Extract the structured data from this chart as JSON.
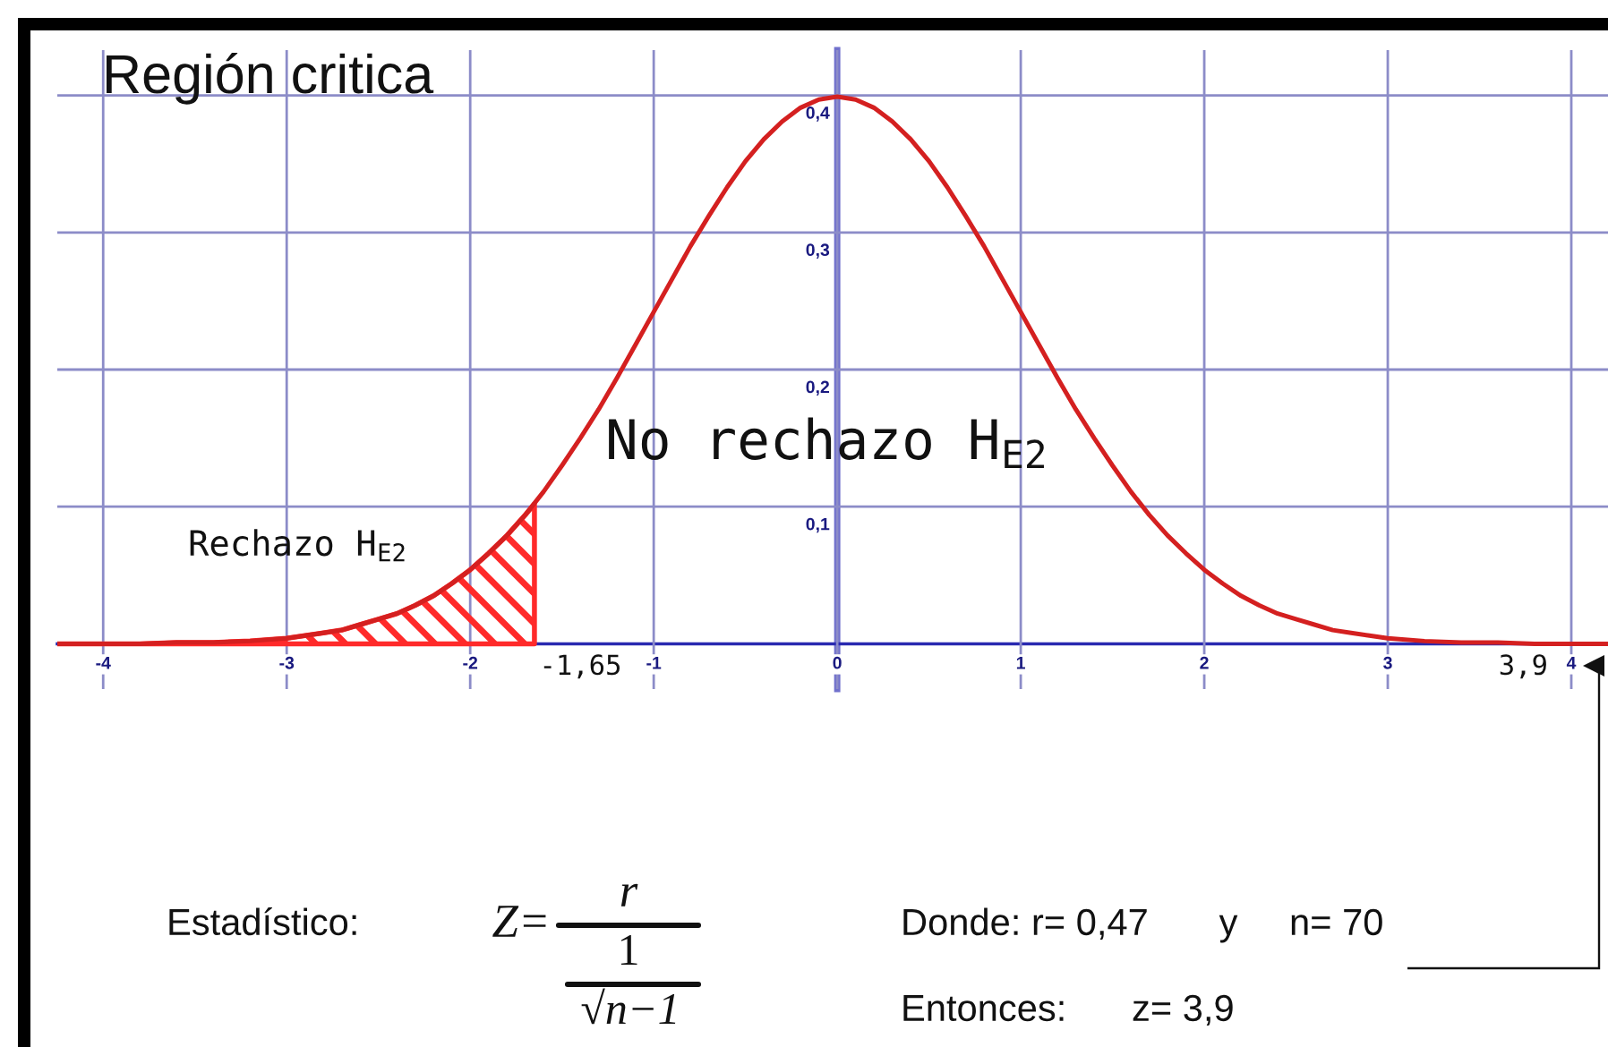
{
  "chart_data": {
    "type": "line",
    "title": "Región critica",
    "series": [
      {
        "color": "#d42020",
        "x": [
          -4.25,
          -4.0,
          -3.8,
          -3.6,
          -3.4,
          -3.2,
          -3.0,
          -2.9,
          -2.8,
          -2.7,
          -2.6,
          -2.5,
          -2.4,
          -2.3,
          -2.2,
          -2.1,
          -2.0,
          -1.9,
          -1.8,
          -1.7,
          -1.6,
          -1.5,
          -1.4,
          -1.3,
          -1.2,
          -1.1,
          -1.0,
          -0.9,
          -0.8,
          -0.7,
          -0.6,
          -0.5,
          -0.4,
          -0.3,
          -0.2,
          -0.1,
          0,
          0.1,
          0.2,
          0.3,
          0.4,
          0.5,
          0.6,
          0.7,
          0.8,
          0.9,
          1.0,
          1.1,
          1.2,
          1.3,
          1.4,
          1.5,
          1.6,
          1.7,
          1.8,
          1.9,
          2.0,
          2.1,
          2.2,
          2.3,
          2.4,
          2.5,
          2.6,
          2.7,
          2.8,
          2.9,
          3.0,
          3.2,
          3.4,
          3.6,
          3.8,
          4.0,
          4.2
        ],
        "values": [
          0,
          0,
          0,
          0.001,
          0.001,
          0.002,
          0.004,
          0.006,
          0.008,
          0.01,
          0.014,
          0.018,
          0.022,
          0.028,
          0.035,
          0.044,
          0.054,
          0.066,
          0.079,
          0.094,
          0.111,
          0.13,
          0.15,
          0.171,
          0.194,
          0.218,
          0.242,
          0.266,
          0.29,
          0.312,
          0.333,
          0.352,
          0.368,
          0.381,
          0.391,
          0.397,
          0.399,
          0.397,
          0.391,
          0.381,
          0.368,
          0.352,
          0.333,
          0.312,
          0.29,
          0.266,
          0.242,
          0.218,
          0.194,
          0.171,
          0.15,
          0.13,
          0.111,
          0.094,
          0.079,
          0.066,
          0.054,
          0.044,
          0.035,
          0.028,
          0.022,
          0.018,
          0.014,
          0.01,
          0.008,
          0.006,
          0.004,
          0.002,
          0.001,
          0.001,
          0,
          0,
          0
        ]
      },
      {
        "type": "area",
        "color": "#ff2a2a",
        "x": [
          -4.25,
          -4.0,
          -3.8,
          -3.6,
          -3.4,
          -3.2,
          -3.0,
          -2.9,
          -2.8,
          -2.7,
          -2.6,
          -2.5,
          -2.4,
          -2.3,
          -2.2,
          -2.1,
          -2.0,
          -1.9,
          -1.8,
          -1.7,
          -1.65
        ],
        "values": [
          0,
          0,
          0,
          0.001,
          0.001,
          0.002,
          0.004,
          0.006,
          0.008,
          0.01,
          0.014,
          0.018,
          0.022,
          0.028,
          0.035,
          0.044,
          0.054,
          0.066,
          0.079,
          0.094,
          0.102
        ]
      }
    ],
    "xlim": [
      -4.25,
      4.2
    ],
    "ylim": [
      -0.033,
      0.433
    ],
    "xticks": [
      -4,
      -3,
      -2,
      -1,
      0,
      1,
      2,
      3,
      4
    ],
    "yticks": [
      {
        "value": 0.1,
        "label": "0,1"
      },
      {
        "value": 0.2,
        "label": "0,2"
      },
      {
        "value": 0.3,
        "label": "0,3"
      },
      {
        "value": 0.4,
        "label": "0,4"
      }
    ],
    "grid": true,
    "annotations": [
      "No rechazo H$_{E2}$",
      "Rechazo H$_{E2}$",
      {
        "text": "-1,65",
        "x": -1.65,
        "y": 0
      },
      {
        "text": "3,9",
        "x": 3.9,
        "y": 0
      },
      "Estadístico:",
      "Z=",
      "r",
      "1",
      "√n−1",
      "Donde: r= 0,47",
      "y",
      "n= 70",
      "Entonces:",
      "z= 3,9"
    ]
  }
}
